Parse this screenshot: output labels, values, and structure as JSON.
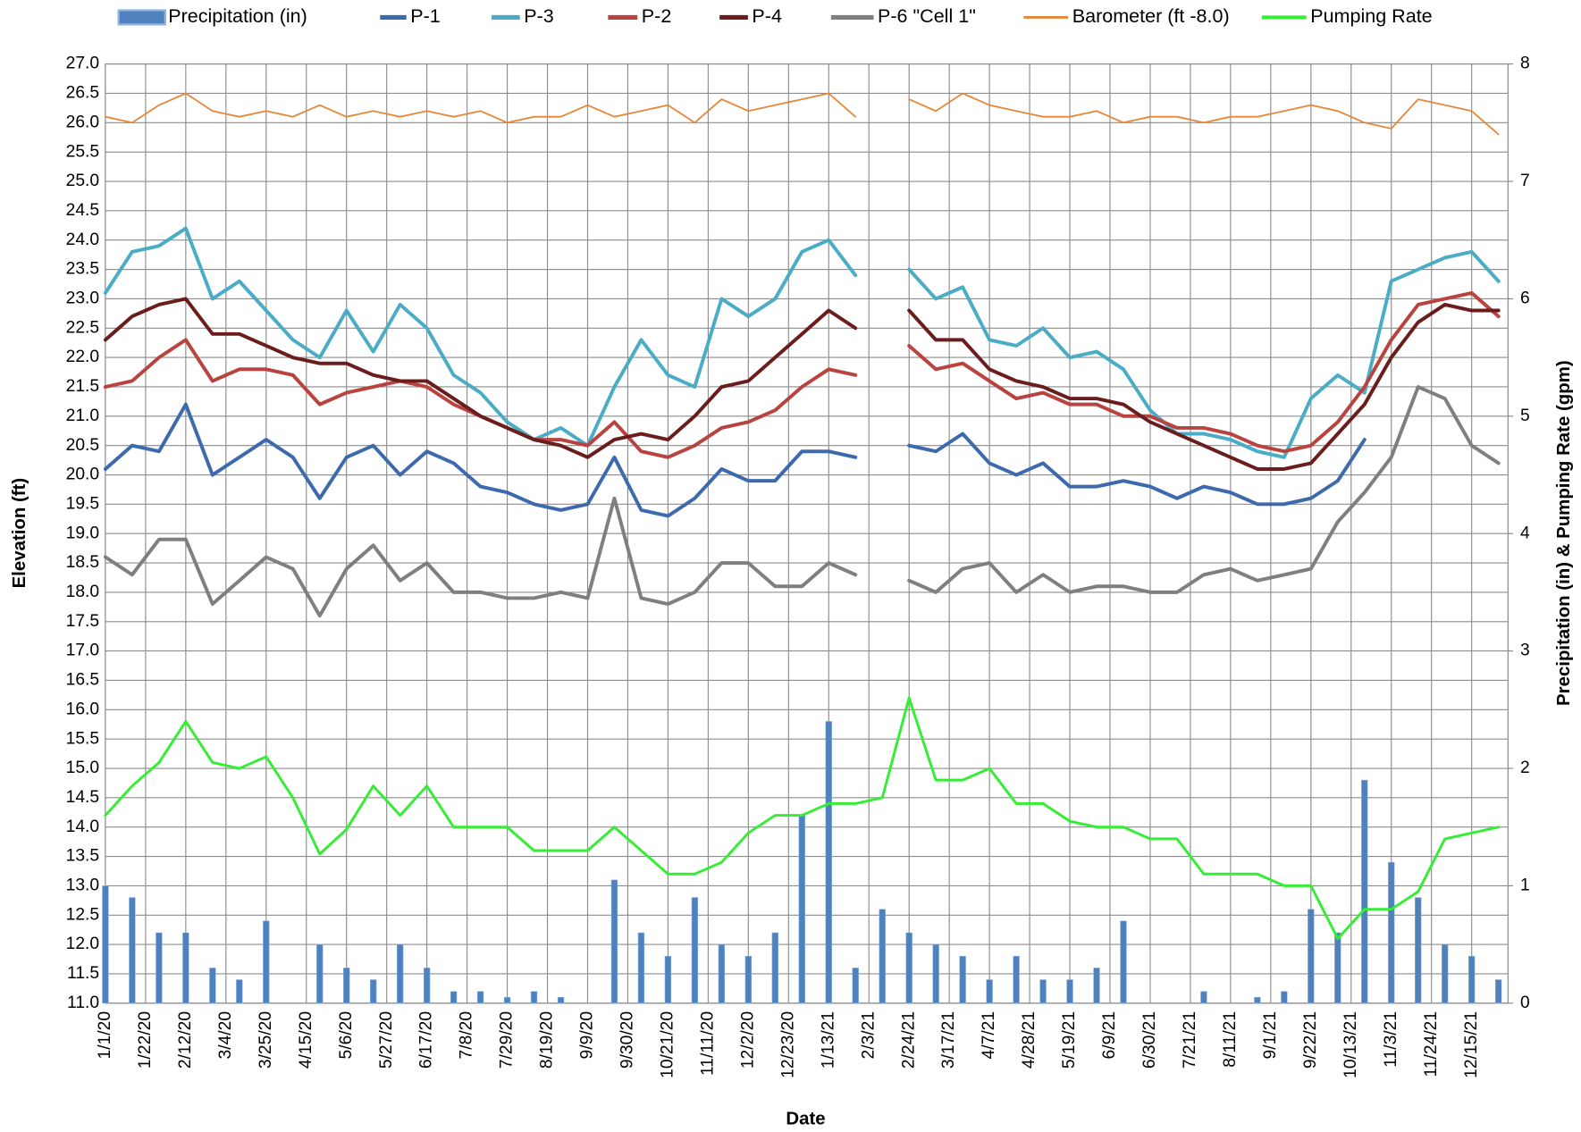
{
  "chart_data": {
    "type": "line",
    "x_label": "Date",
    "y_label": "Elevation (ft)",
    "y2_label": "Precipitation (in) & Pumping Rate (gpm)",
    "x": [
      "1/1/20",
      "1/15/20",
      "1/29/20",
      "2/12/20",
      "2/26/20",
      "3/11/20",
      "3/25/20",
      "4/8/20",
      "4/22/20",
      "5/6/20",
      "5/20/20",
      "6/3/20",
      "6/17/20",
      "7/1/20",
      "7/15/20",
      "7/29/20",
      "8/12/20",
      "8/26/20",
      "9/9/20",
      "9/23/20",
      "10/7/20",
      "10/21/20",
      "11/4/20",
      "11/18/20",
      "12/2/20",
      "12/16/20",
      "12/30/20",
      "1/13/21",
      "1/27/21",
      "2/10/21",
      "2/24/21",
      "3/10/21",
      "3/24/21",
      "4/7/21",
      "4/21/21",
      "5/5/21",
      "5/19/21",
      "6/2/21",
      "6/16/21",
      "6/30/21",
      "7/14/21",
      "7/28/21",
      "8/11/21",
      "8/25/21",
      "9/8/21",
      "9/22/21",
      "10/6/21",
      "10/20/21",
      "11/3/21",
      "11/17/21",
      "12/1/21",
      "12/15/21",
      "12/29/21"
    ],
    "xlim": [
      "1/1/20",
      "1/3/22"
    ],
    "xticks": [
      "1/1/20",
      "1/22/20",
      "2/12/20",
      "3/4/20",
      "3/25/20",
      "4/15/20",
      "5/6/20",
      "5/27/20",
      "6/17/20",
      "7/8/20",
      "7/29/20",
      "8/19/20",
      "9/9/20",
      "9/30/20",
      "10/21/20",
      "11/11/20",
      "12/2/20",
      "12/23/20",
      "1/13/21",
      "2/3/21",
      "2/24/21",
      "3/17/21",
      "4/7/21",
      "4/28/21",
      "5/19/21",
      "6/9/21",
      "6/30/21",
      "7/21/21",
      "8/11/21",
      "9/1/21",
      "9/22/21",
      "10/13/21",
      "11/3/21",
      "11/24/21",
      "12/15/21"
    ],
    "ylim": [
      11,
      27
    ],
    "yticks": [
      {
        "value": 11,
        "label": "11.0"
      },
      {
        "value": 11.5,
        "label": "11.5"
      },
      {
        "value": 12,
        "label": "12.0"
      },
      {
        "value": 12.5,
        "label": "12.5"
      },
      {
        "value": 13,
        "label": "13.0"
      },
      {
        "value": 13.5,
        "label": "13.5"
      },
      {
        "value": 14,
        "label": "14.0"
      },
      {
        "value": 14.5,
        "label": "14.5"
      },
      {
        "value": 15,
        "label": "15.0"
      },
      {
        "value": 15.5,
        "label": "15.5"
      },
      {
        "value": 16,
        "label": "16.0"
      },
      {
        "value": 16.5,
        "label": "16.5"
      },
      {
        "value": 17,
        "label": "17.0"
      },
      {
        "value": 17.5,
        "label": "17.5"
      },
      {
        "value": 18,
        "label": "18.0"
      },
      {
        "value": 18.5,
        "label": "18.5"
      },
      {
        "value": 19,
        "label": "19.0"
      },
      {
        "value": 19.5,
        "label": "19.5"
      },
      {
        "value": 20,
        "label": "20.0"
      },
      {
        "value": 20.5,
        "label": "20.5"
      },
      {
        "value": 21,
        "label": "21.0"
      },
      {
        "value": 21.5,
        "label": "21.5"
      },
      {
        "value": 22,
        "label": "22.0"
      },
      {
        "value": 22.5,
        "label": "22.5"
      },
      {
        "value": 23,
        "label": "23.0"
      },
      {
        "value": 23.5,
        "label": "23.5"
      },
      {
        "value": 24,
        "label": "24.0"
      },
      {
        "value": 24.5,
        "label": "24.5"
      },
      {
        "value": 25,
        "label": "25.0"
      },
      {
        "value": 25.5,
        "label": "25.5"
      },
      {
        "value": 26,
        "label": "26.0"
      },
      {
        "value": 26.5,
        "label": "26.5"
      },
      {
        "value": 27,
        "label": "27.0"
      }
    ],
    "y2lim": [
      0,
      8
    ],
    "y2ticks": [
      0,
      1,
      2,
      3,
      4,
      5,
      6,
      7,
      8
    ],
    "grid": true,
    "legend": "top",
    "series": [
      {
        "name": "Precipitation (in)",
        "type": "bar",
        "axis": "y2",
        "color": "#4f81bd",
        "values": [
          1.0,
          0.9,
          0.6,
          0.6,
          0.3,
          0.2,
          0.7,
          0.0,
          0.5,
          0.3,
          0.2,
          0.5,
          0.3,
          0.1,
          0.1,
          0.05,
          0.1,
          0.05,
          0.0,
          1.05,
          0.6,
          0.4,
          0.9,
          0.5,
          0.4,
          0.6,
          1.6,
          2.4,
          0.3,
          0.8,
          0.6,
          0.5,
          0.4,
          0.2,
          0.4,
          0.2,
          0.2,
          0.3,
          0.7,
          0.0,
          0.0,
          0.1,
          0.0,
          0.05,
          0.1,
          0.8,
          0.6,
          1.9,
          1.2,
          0.9,
          0.5,
          0.4,
          0.2
        ]
      },
      {
        "name": "P-1",
        "color": "#3d6aad",
        "values": [
          20.1,
          20.5,
          20.4,
          21.2,
          20.0,
          20.3,
          20.6,
          20.3,
          19.6,
          20.3,
          20.5,
          20.0,
          20.4,
          20.2,
          19.8,
          19.7,
          19.5,
          19.4,
          19.5,
          20.3,
          19.4,
          19.3,
          19.6,
          20.1,
          19.9,
          19.9,
          20.4,
          20.4,
          20.3,
          null,
          20.5,
          20.4,
          20.7,
          20.2,
          20.0,
          20.2,
          19.8,
          19.8,
          19.9,
          19.8,
          19.6,
          19.8,
          19.7,
          19.5,
          19.5,
          19.6,
          19.9,
          20.6,
          null,
          null,
          null,
          null,
          null
        ]
      },
      {
        "name": "P-3",
        "color": "#4bacc6",
        "values": [
          23.1,
          23.8,
          23.9,
          24.2,
          23.0,
          23.3,
          22.8,
          22.3,
          22.0,
          22.8,
          22.1,
          22.9,
          22.5,
          21.7,
          21.4,
          20.9,
          20.6,
          20.8,
          20.5,
          21.5,
          22.3,
          21.7,
          21.5,
          23.0,
          22.7,
          23.0,
          23.8,
          24.0,
          23.4,
          null,
          23.5,
          23.0,
          23.2,
          22.3,
          22.2,
          22.5,
          22.0,
          22.1,
          21.8,
          21.1,
          20.7,
          20.7,
          20.6,
          20.4,
          20.3,
          21.3,
          21.7,
          21.4,
          23.3,
          23.5,
          23.7,
          23.8,
          23.3
        ]
      },
      {
        "name": "P-2",
        "color": "#b8433f",
        "values": [
          21.5,
          21.6,
          22.0,
          22.3,
          21.6,
          21.8,
          21.8,
          21.7,
          21.2,
          21.4,
          21.5,
          21.6,
          21.5,
          21.2,
          21.0,
          20.8,
          20.6,
          20.6,
          20.5,
          20.9,
          20.4,
          20.3,
          20.5,
          20.8,
          20.9,
          21.1,
          21.5,
          21.8,
          21.7,
          null,
          22.2,
          21.8,
          21.9,
          21.6,
          21.3,
          21.4,
          21.2,
          21.2,
          21.0,
          21.0,
          20.8,
          20.8,
          20.7,
          20.5,
          20.4,
          20.5,
          20.9,
          21.5,
          22.3,
          22.9,
          23.0,
          23.1,
          22.7
        ]
      },
      {
        "name": "P-4",
        "color": "#6b1d1d",
        "values": [
          22.3,
          22.7,
          22.9,
          23.0,
          22.4,
          22.4,
          22.2,
          22.0,
          21.9,
          21.9,
          21.7,
          21.6,
          21.6,
          21.3,
          21.0,
          20.8,
          20.6,
          20.5,
          20.3,
          20.6,
          20.7,
          20.6,
          21.0,
          21.5,
          21.6,
          22.0,
          22.4,
          22.8,
          22.5,
          null,
          22.8,
          22.3,
          22.3,
          21.8,
          21.6,
          21.5,
          21.3,
          21.3,
          21.2,
          20.9,
          20.7,
          20.5,
          20.3,
          20.1,
          20.1,
          20.2,
          20.7,
          21.2,
          22.0,
          22.6,
          22.9,
          22.8,
          22.8
        ]
      },
      {
        "name": "P-6 \"Cell 1\"",
        "color": "#7f7f7f",
        "values": [
          18.6,
          18.3,
          18.9,
          18.9,
          17.8,
          18.2,
          18.6,
          18.4,
          17.6,
          18.4,
          18.8,
          18.2,
          18.5,
          18.0,
          18.0,
          17.9,
          17.9,
          18.0,
          17.9,
          19.6,
          17.9,
          17.8,
          18.0,
          18.5,
          18.5,
          18.1,
          18.1,
          18.5,
          18.3,
          null,
          18.2,
          18.0,
          18.4,
          18.5,
          18.0,
          18.3,
          18.0,
          18.1,
          18.1,
          18.0,
          18.0,
          18.3,
          18.4,
          18.2,
          18.3,
          18.4,
          19.2,
          19.7,
          20.3,
          21.5,
          21.3,
          20.5,
          20.2
        ]
      },
      {
        "name": "Barometer (ft -8.0)",
        "color": "#e5883a",
        "values": [
          26.1,
          26.0,
          26.3,
          26.5,
          26.2,
          26.1,
          26.2,
          26.1,
          26.3,
          26.1,
          26.2,
          26.1,
          26.2,
          26.1,
          26.2,
          26.0,
          26.1,
          26.1,
          26.3,
          26.1,
          26.2,
          26.3,
          26.0,
          26.4,
          26.2,
          26.3,
          26.4,
          26.5,
          26.1,
          null,
          26.4,
          26.2,
          26.5,
          26.3,
          26.2,
          26.1,
          26.1,
          26.2,
          26.0,
          26.1,
          26.1,
          26.0,
          26.1,
          26.1,
          26.2,
          26.3,
          26.2,
          26.0,
          25.9,
          26.4,
          26.3,
          26.2,
          25.8
        ]
      },
      {
        "name": "Pumping Rate",
        "axis": "y2",
        "color": "#33ee33",
        "values": [
          1.6,
          1.85,
          2.05,
          2.4,
          2.05,
          2.0,
          2.1,
          1.75,
          1.27,
          1.48,
          1.85,
          1.6,
          1.85,
          1.5,
          1.5,
          1.5,
          1.3,
          1.3,
          1.3,
          1.5,
          1.3,
          1.1,
          1.1,
          1.2,
          1.45,
          1.6,
          1.6,
          1.7,
          1.7,
          1.75,
          2.6,
          1.9,
          1.9,
          2.0,
          1.7,
          1.7,
          1.55,
          1.5,
          1.5,
          1.4,
          1.4,
          1.1,
          1.1,
          1.1,
          1.0,
          1.0,
          0.55,
          0.8,
          0.8,
          0.95,
          1.4,
          1.45,
          1.5
        ]
      }
    ]
  }
}
